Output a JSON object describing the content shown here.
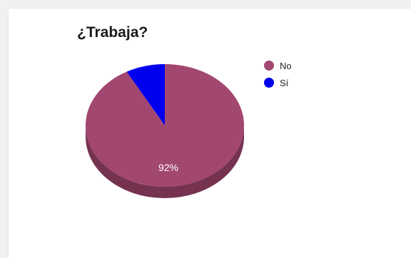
{
  "chart_data": {
    "type": "pie",
    "title": "¿Trabaja?",
    "slices": [
      {
        "label": "No",
        "value": 92,
        "data_label": "92%",
        "color": "#a2476f"
      },
      {
        "label": "Sí",
        "value": 8,
        "data_label": "",
        "color": "#0000ee"
      }
    ],
    "legend": {
      "position": "top-right"
    },
    "style": "3d"
  }
}
